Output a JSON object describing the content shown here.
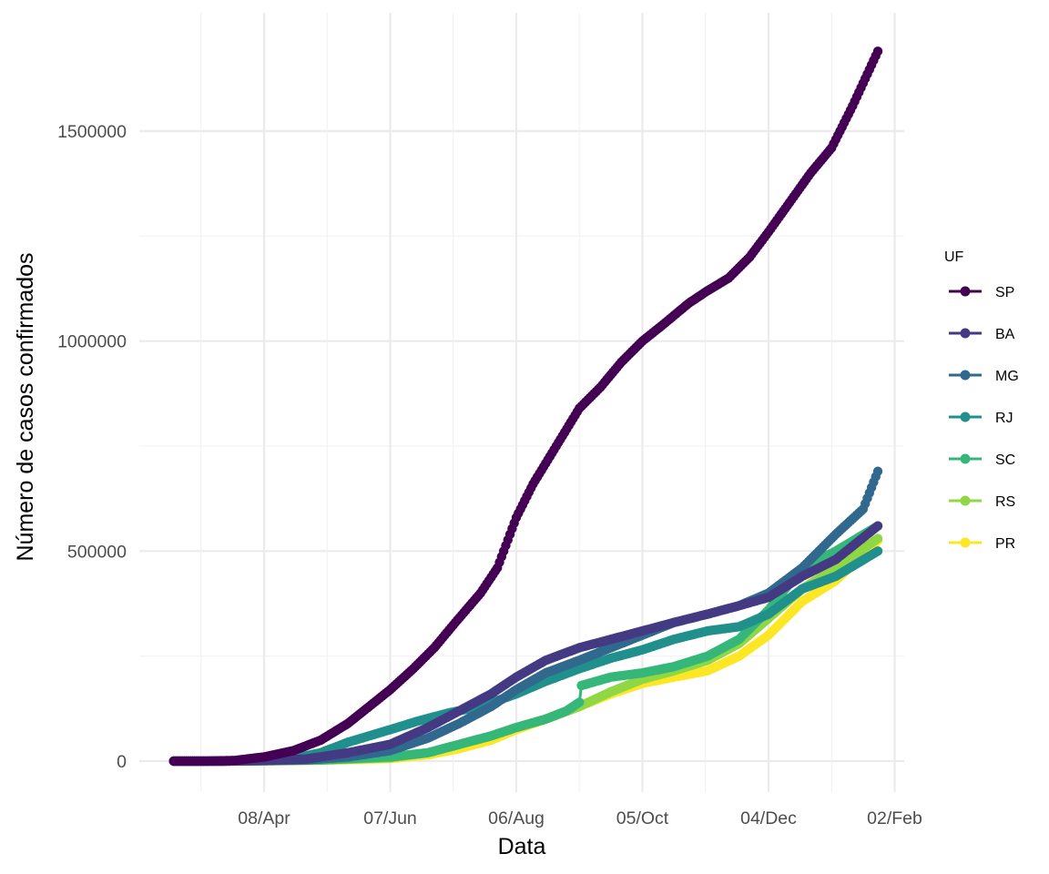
{
  "chart_data": {
    "type": "line",
    "xlabel": "Data",
    "ylabel": "Número de casos confirmados",
    "legend_title": "UF",
    "legend_position": "right",
    "grid": true,
    "markers": true,
    "x_range": [
      "2020-02-25",
      "2021-01-25"
    ],
    "x_ticks": [
      "2020-04-08",
      "2020-06-07",
      "2020-08-06",
      "2020-10-05",
      "2020-12-04",
      "2021-02-02"
    ],
    "x_tick_labels": [
      "08/Apr",
      "07/Jun",
      "06/Aug",
      "05/Oct",
      "04/Dec",
      "02/Feb"
    ],
    "ylim": [
      -80000,
      1770000
    ],
    "y_ticks": [
      0,
      500000,
      1000000,
      1500000
    ],
    "y_tick_labels": [
      "0",
      "500000",
      "1000000",
      "1500000"
    ],
    "series": [
      {
        "name": "SP",
        "color": "#440154",
        "points": [
          [
            "2020-02-25",
            0
          ],
          [
            "2020-03-10",
            0
          ],
          [
            "2020-03-25",
            1500
          ],
          [
            "2020-04-08",
            10000
          ],
          [
            "2020-04-22",
            25000
          ],
          [
            "2020-05-05",
            50000
          ],
          [
            "2020-05-18",
            90000
          ],
          [
            "2020-05-28",
            130000
          ],
          [
            "2020-06-07",
            170000
          ],
          [
            "2020-06-18",
            220000
          ],
          [
            "2020-06-28",
            270000
          ],
          [
            "2020-07-08",
            330000
          ],
          [
            "2020-07-20",
            400000
          ],
          [
            "2020-07-28",
            460000
          ],
          [
            "2020-08-06",
            580000
          ],
          [
            "2020-08-14",
            660000
          ],
          [
            "2020-08-25",
            750000
          ],
          [
            "2020-09-05",
            840000
          ],
          [
            "2020-09-15",
            890000
          ],
          [
            "2020-09-25",
            950000
          ],
          [
            "2020-10-05",
            1000000
          ],
          [
            "2020-10-15",
            1040000
          ],
          [
            "2020-10-27",
            1090000
          ],
          [
            "2020-11-05",
            1120000
          ],
          [
            "2020-11-15",
            1150000
          ],
          [
            "2020-11-25",
            1200000
          ],
          [
            "2020-12-04",
            1260000
          ],
          [
            "2020-12-14",
            1330000
          ],
          [
            "2020-12-24",
            1400000
          ],
          [
            "2021-01-03",
            1460000
          ],
          [
            "2021-01-13",
            1560000
          ],
          [
            "2021-01-25",
            1690000
          ]
        ]
      },
      {
        "name": "BA",
        "color": "#443A83",
        "points": [
          [
            "2020-02-25",
            0
          ],
          [
            "2020-03-20",
            0
          ],
          [
            "2020-04-08",
            1500
          ],
          [
            "2020-04-28",
            5000
          ],
          [
            "2020-05-18",
            20000
          ],
          [
            "2020-06-07",
            40000
          ],
          [
            "2020-06-25",
            80000
          ],
          [
            "2020-07-10",
            120000
          ],
          [
            "2020-07-25",
            160000
          ],
          [
            "2020-08-06",
            200000
          ],
          [
            "2020-08-20",
            240000
          ],
          [
            "2020-09-05",
            270000
          ],
          [
            "2020-09-20",
            290000
          ],
          [
            "2020-10-05",
            310000
          ],
          [
            "2020-10-20",
            330000
          ],
          [
            "2020-11-05",
            350000
          ],
          [
            "2020-11-20",
            370000
          ],
          [
            "2020-12-04",
            390000
          ],
          [
            "2020-12-20",
            440000
          ],
          [
            "2021-01-05",
            480000
          ],
          [
            "2021-01-25",
            560000
          ]
        ]
      },
      {
        "name": "MG",
        "color": "#31688E",
        "points": [
          [
            "2020-02-25",
            0
          ],
          [
            "2020-03-20",
            0
          ],
          [
            "2020-04-08",
            1200
          ],
          [
            "2020-04-28",
            3000
          ],
          [
            "2020-05-18",
            10000
          ],
          [
            "2020-06-07",
            25000
          ],
          [
            "2020-06-25",
            55000
          ],
          [
            "2020-07-10",
            90000
          ],
          [
            "2020-07-25",
            130000
          ],
          [
            "2020-08-06",
            170000
          ],
          [
            "2020-08-20",
            210000
          ],
          [
            "2020-09-05",
            240000
          ],
          [
            "2020-09-20",
            270000
          ],
          [
            "2020-10-05",
            300000
          ],
          [
            "2020-10-20",
            330000
          ],
          [
            "2020-11-05",
            350000
          ],
          [
            "2020-11-20",
            370000
          ],
          [
            "2020-12-04",
            400000
          ],
          [
            "2020-12-20",
            460000
          ],
          [
            "2021-01-05",
            540000
          ],
          [
            "2021-01-18",
            600000
          ],
          [
            "2021-01-25",
            690000
          ]
        ]
      },
      {
        "name": "RJ",
        "color": "#21908C",
        "points": [
          [
            "2020-02-25",
            0
          ],
          [
            "2020-03-20",
            0
          ],
          [
            "2020-04-08",
            2000
          ],
          [
            "2020-04-22",
            6000
          ],
          [
            "2020-05-05",
            20000
          ],
          [
            "2020-05-18",
            45000
          ],
          [
            "2020-05-28",
            60000
          ],
          [
            "2020-06-07",
            75000
          ],
          [
            "2020-06-20",
            95000
          ],
          [
            "2020-07-05",
            115000
          ],
          [
            "2020-07-20",
            130000
          ],
          [
            "2020-08-06",
            160000
          ],
          [
            "2020-08-20",
            190000
          ],
          [
            "2020-09-05",
            220000
          ],
          [
            "2020-09-20",
            245000
          ],
          [
            "2020-10-05",
            265000
          ],
          [
            "2020-10-20",
            290000
          ],
          [
            "2020-11-05",
            310000
          ],
          [
            "2020-11-20",
            320000
          ],
          [
            "2020-12-04",
            350000
          ],
          [
            "2020-12-20",
            410000
          ],
          [
            "2021-01-05",
            440000
          ],
          [
            "2021-01-25",
            500000
          ]
        ]
      },
      {
        "name": "SC",
        "color": "#35B779",
        "points": [
          [
            "2020-02-25",
            0
          ],
          [
            "2020-03-20",
            0
          ],
          [
            "2020-04-08",
            1000
          ],
          [
            "2020-05-05",
            3000
          ],
          [
            "2020-06-07",
            10000
          ],
          [
            "2020-06-25",
            20000
          ],
          [
            "2020-07-10",
            40000
          ],
          [
            "2020-07-25",
            60000
          ],
          [
            "2020-08-06",
            80000
          ],
          [
            "2020-08-20",
            100000
          ],
          [
            "2020-08-30",
            120000
          ],
          [
            "2020-09-05",
            140000
          ],
          [
            "2020-09-06",
            180000
          ],
          [
            "2020-09-20",
            200000
          ],
          [
            "2020-10-05",
            210000
          ],
          [
            "2020-10-20",
            225000
          ],
          [
            "2020-11-05",
            250000
          ],
          [
            "2020-11-20",
            290000
          ],
          [
            "2020-12-04",
            360000
          ],
          [
            "2020-12-20",
            460000
          ],
          [
            "2021-01-05",
            500000
          ],
          [
            "2021-01-25",
            560000
          ]
        ]
      },
      {
        "name": "RS",
        "color": "#8FD744",
        "points": [
          [
            "2020-02-25",
            0
          ],
          [
            "2020-03-20",
            0
          ],
          [
            "2020-04-08",
            800
          ],
          [
            "2020-05-05",
            2500
          ],
          [
            "2020-06-07",
            8000
          ],
          [
            "2020-06-25",
            20000
          ],
          [
            "2020-07-10",
            40000
          ],
          [
            "2020-07-25",
            60000
          ],
          [
            "2020-08-06",
            80000
          ],
          [
            "2020-08-20",
            100000
          ],
          [
            "2020-09-05",
            130000
          ],
          [
            "2020-09-20",
            165000
          ],
          [
            "2020-10-05",
            195000
          ],
          [
            "2020-10-20",
            215000
          ],
          [
            "2020-11-05",
            240000
          ],
          [
            "2020-11-20",
            280000
          ],
          [
            "2020-12-04",
            340000
          ],
          [
            "2020-12-20",
            410000
          ],
          [
            "2021-01-05",
            460000
          ],
          [
            "2021-01-25",
            530000
          ]
        ]
      },
      {
        "name": "PR",
        "color": "#FDE725",
        "points": [
          [
            "2020-02-25",
            0
          ],
          [
            "2020-03-20",
            0
          ],
          [
            "2020-04-08",
            600
          ],
          [
            "2020-05-05",
            2000
          ],
          [
            "2020-06-07",
            6000
          ],
          [
            "2020-06-25",
            15000
          ],
          [
            "2020-07-10",
            30000
          ],
          [
            "2020-07-25",
            50000
          ],
          [
            "2020-08-06",
            75000
          ],
          [
            "2020-08-20",
            100000
          ],
          [
            "2020-09-05",
            130000
          ],
          [
            "2020-09-20",
            160000
          ],
          [
            "2020-10-05",
            185000
          ],
          [
            "2020-10-20",
            200000
          ],
          [
            "2020-11-05",
            215000
          ],
          [
            "2020-11-20",
            250000
          ],
          [
            "2020-12-04",
            300000
          ],
          [
            "2020-12-20",
            380000
          ],
          [
            "2021-01-05",
            430000
          ],
          [
            "2021-01-25",
            525000
          ]
        ]
      }
    ]
  }
}
